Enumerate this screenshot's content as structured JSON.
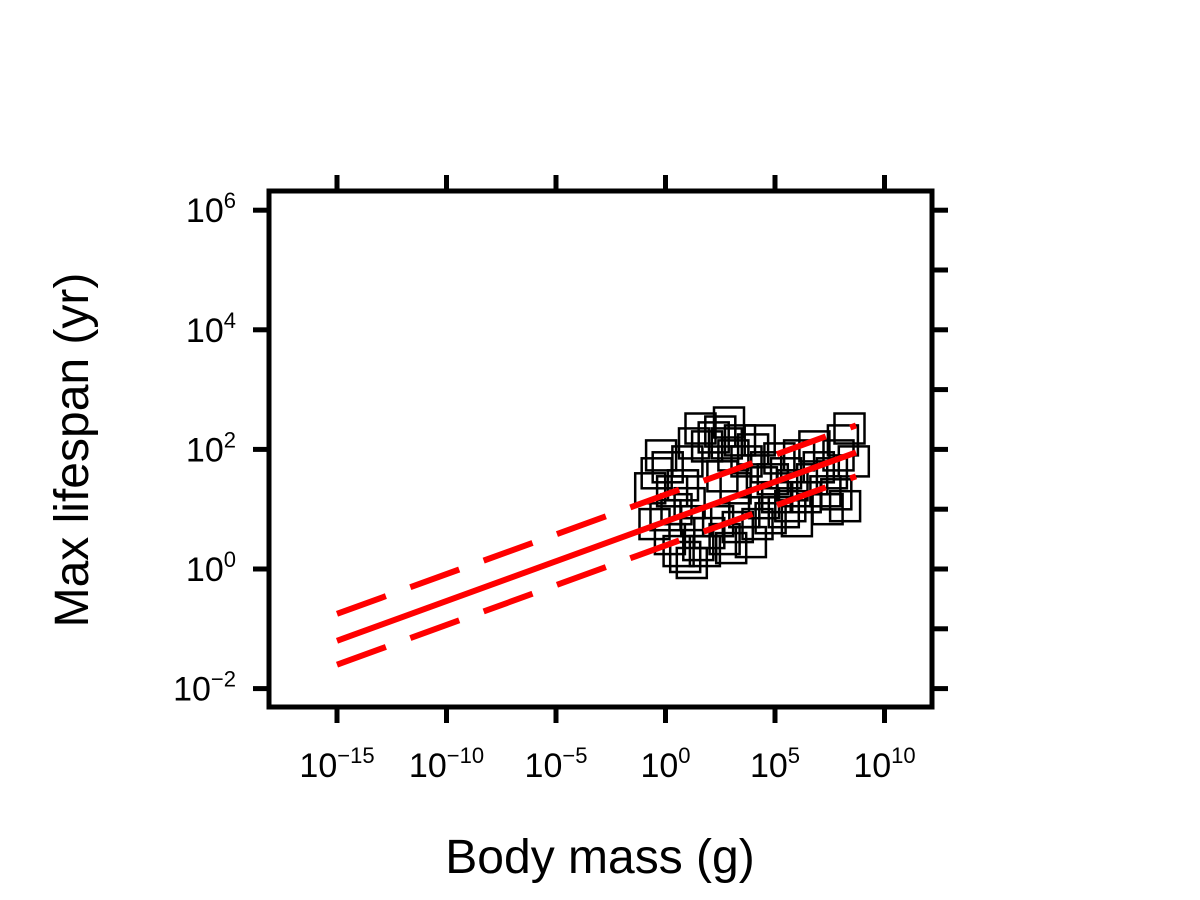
{
  "chart_data": {
    "type": "scatter",
    "xlabel": "Body mass (g)",
    "ylabel": "Max lifespan (yr)",
    "x_scale": "log10",
    "y_scale": "log10",
    "xlim_exp": [
      -15,
      10
    ],
    "ylim_exp": [
      -2,
      6
    ],
    "x_ticks": [
      {
        "base": "10",
        "exp": "−15",
        "value_exp": -15
      },
      {
        "base": "10",
        "exp": "−10",
        "value_exp": -10
      },
      {
        "base": "10",
        "exp": "−5",
        "value_exp": -5
      },
      {
        "base": "10",
        "exp": "0",
        "value_exp": 0
      },
      {
        "base": "10",
        "exp": "5",
        "value_exp": 5
      },
      {
        "base": "10",
        "exp": "10",
        "value_exp": 10
      }
    ],
    "y_ticks": [
      {
        "base": "10",
        "exp": "−2",
        "value_exp": -2
      },
      {
        "base": "10",
        "exp": "0",
        "value_exp": 0
      },
      {
        "base": "10",
        "exp": "2",
        "value_exp": 2
      },
      {
        "base": "10",
        "exp": "4",
        "value_exp": 4
      },
      {
        "base": "10",
        "exp": "6",
        "value_exp": 6
      }
    ],
    "y_minor_tick_exps": [
      -1,
      1,
      3,
      5
    ],
    "grid": false,
    "marker": "open-square",
    "marker_color": "#000000",
    "fit_color": "#ff0000",
    "fit_line": {
      "x_exp": [
        -15,
        8.7
      ],
      "y_exp": [
        -1.2,
        1.95
      ]
    },
    "confidence_upper": {
      "x_exp": [
        -15,
        8.7
      ],
      "y_exp": [
        -0.75,
        2.4
      ]
    },
    "confidence_lower": {
      "x_exp": [
        -15,
        8.7
      ],
      "y_exp": [
        -1.6,
        1.55
      ]
    },
    "points_log10": [
      [
        -0.7,
        1.35
      ],
      [
        -0.4,
        1.6
      ],
      [
        -0.2,
        1.9
      ],
      [
        0.1,
        1.7
      ],
      [
        0.3,
        1.3
      ],
      [
        0.5,
        1.0
      ],
      [
        0.2,
        0.5
      ],
      [
        0.6,
        0.3
      ],
      [
        0.9,
        0.2
      ],
      [
        1.2,
        0.1
      ],
      [
        1.5,
        0.4
      ],
      [
        1.8,
        0.3
      ],
      [
        0.8,
        1.4
      ],
      [
        1.0,
        1.8
      ],
      [
        1.3,
        2.1
      ],
      [
        1.6,
        2.35
      ],
      [
        1.9,
        2.05
      ],
      [
        2.2,
        2.2
      ],
      [
        2.5,
        2.3
      ],
      [
        2.8,
        2.1
      ],
      [
        3.1,
        1.9
      ],
      [
        3.4,
        2.15
      ],
      [
        3.7,
        1.8
      ],
      [
        4.0,
        2.0
      ],
      [
        4.3,
        2.15
      ],
      [
        4.6,
        1.7
      ],
      [
        4.9,
        1.5
      ],
      [
        5.2,
        1.85
      ],
      [
        5.5,
        1.6
      ],
      [
        5.8,
        1.4
      ],
      [
        6.1,
        1.9
      ],
      [
        6.4,
        1.2
      ],
      [
        6.7,
        1.5
      ],
      [
        7.0,
        1.7
      ],
      [
        7.3,
        1.3
      ],
      [
        7.6,
        1.6
      ],
      [
        7.9,
        1.9
      ],
      [
        8.1,
        2.15
      ],
      [
        8.4,
        2.35
      ],
      [
        8.6,
        1.8
      ],
      [
        8.2,
        1.05
      ],
      [
        7.8,
        1.25
      ],
      [
        2.0,
        0.6
      ],
      [
        2.4,
        0.8
      ],
      [
        2.7,
        0.5
      ],
      [
        3.0,
        0.35
      ],
      [
        3.3,
        0.7
      ],
      [
        3.6,
        0.95
      ],
      [
        3.9,
        0.45
      ],
      [
        4.2,
        0.75
      ],
      [
        4.5,
        1.1
      ],
      [
        4.8,
        0.85
      ],
      [
        5.1,
        1.2
      ],
      [
        5.4,
        0.95
      ],
      [
        5.7,
        1.05
      ],
      [
        6.0,
        0.8
      ],
      [
        1.1,
        1.1
      ],
      [
        1.4,
        0.8
      ],
      [
        2.6,
        1.55
      ],
      [
        3.2,
        1.35
      ],
      [
        0.0,
        0.9
      ],
      [
        -0.5,
        0.75
      ],
      [
        2.9,
        2.45
      ],
      [
        6.8,
        2.05
      ],
      [
        7.4,
        1.0
      ],
      [
        4.4,
        1.45
      ]
    ]
  }
}
